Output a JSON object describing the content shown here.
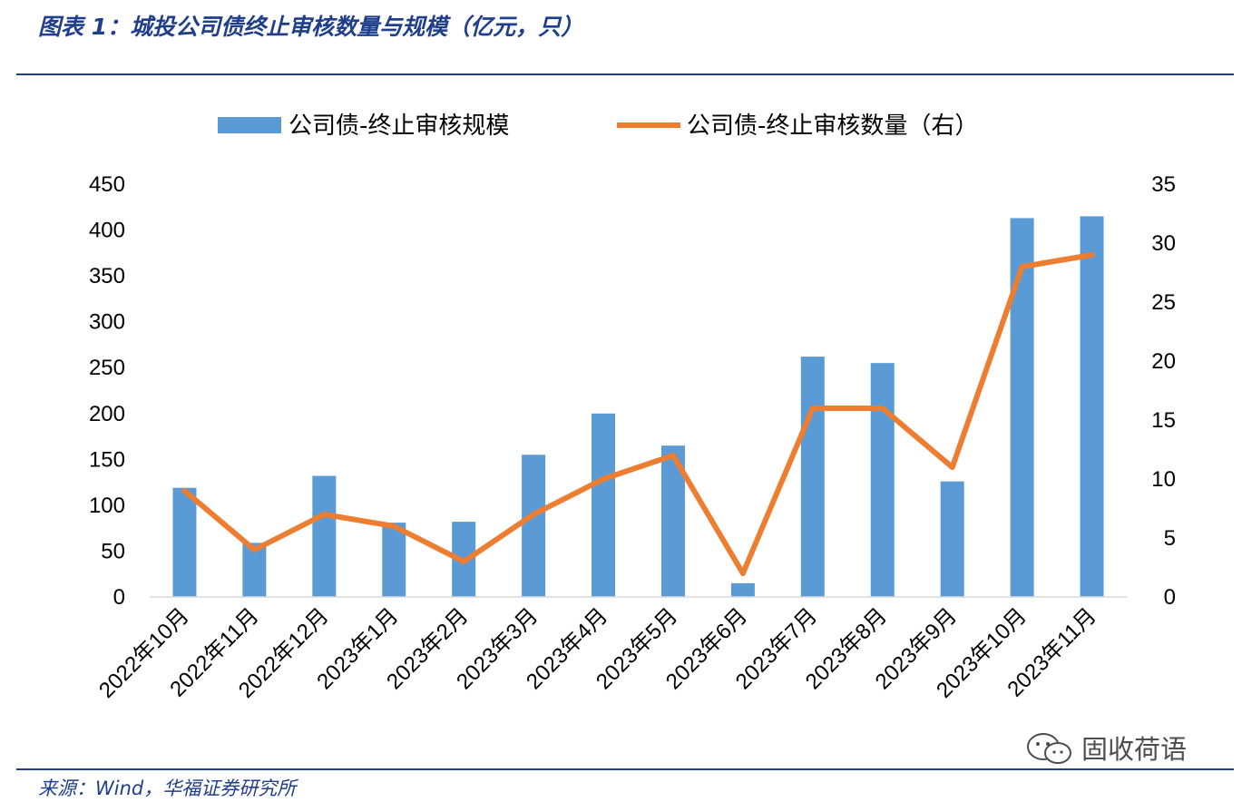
{
  "header": {
    "title": "图表 1：城投公司债终止审核数量与规模（亿元，只）"
  },
  "footer": {
    "source": "来源：Wind，华福证券研究所",
    "watermark": "固收荷语"
  },
  "colors": {
    "bar": "#5b9bd5",
    "line": "#ed7d31",
    "rule": "#1f3e8c"
  },
  "icons": {
    "watermark": "wechat-icon"
  },
  "chart_data": {
    "type": "bar",
    "categories": [
      "2022年10月",
      "2022年11月",
      "2022年12月",
      "2023年1月",
      "2023年2月",
      "2023年3月",
      "2023年4月",
      "2023年5月",
      "2023年6月",
      "2023年7月",
      "2023年8月",
      "2023年9月",
      "2023年10月",
      "2023年11月"
    ],
    "series": [
      {
        "name": "公司债-终止审核规模",
        "type": "bar",
        "axis": "left",
        "values": [
          119,
          59,
          132,
          81,
          82,
          155,
          200,
          165,
          15,
          262,
          255,
          126,
          413,
          415
        ]
      },
      {
        "name": "公司债-终止审核数量（右）",
        "type": "line",
        "axis": "right",
        "values": [
          9,
          4,
          7,
          6,
          3,
          7,
          10,
          12,
          2,
          16,
          16,
          11,
          28,
          29
        ]
      }
    ],
    "y_left": {
      "lim": [
        0,
        450
      ],
      "ticks": [
        "0",
        "50",
        "100",
        "150",
        "200",
        "250",
        "300",
        "350",
        "400",
        "450"
      ]
    },
    "y_right": {
      "lim": [
        0,
        35
      ],
      "ticks": [
        "0",
        "5",
        "10",
        "15",
        "20",
        "25",
        "30",
        "35"
      ]
    },
    "grid": false,
    "legend": "top"
  }
}
